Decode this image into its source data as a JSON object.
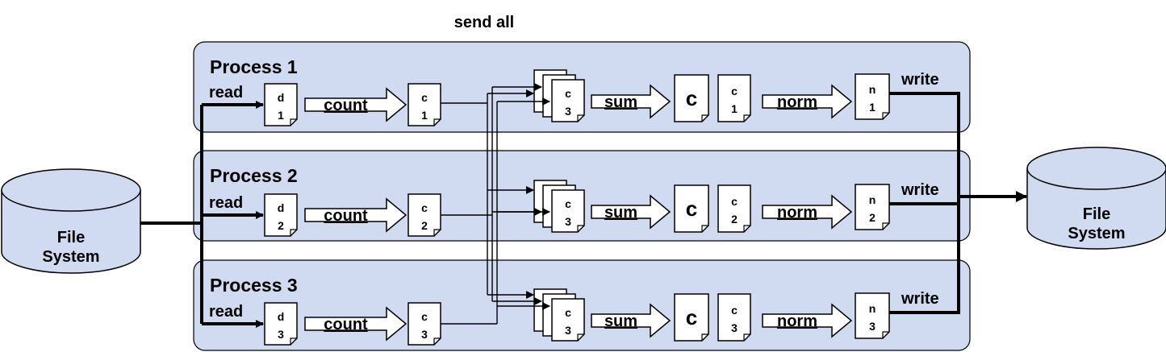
{
  "header": {
    "send_all": "send all"
  },
  "storage": {
    "source": {
      "line1": "File",
      "line2": "System"
    },
    "target": {
      "line1": "File",
      "line2": "System"
    }
  },
  "processes": [
    {
      "title": "Process 1",
      "read": "read",
      "write": "write",
      "input_doc": {
        "top": "d",
        "bottom": "1"
      },
      "count_label": "count",
      "count_doc": {
        "top": "c",
        "bottom": "1"
      },
      "stack_doc": {
        "top": "c",
        "bottom": "3"
      },
      "sum_label": "sum",
      "sum_doc": {
        "top": "c"
      },
      "local_doc": {
        "top": "c",
        "bottom": "1"
      },
      "norm_label": "norm",
      "norm_doc": {
        "top": "n",
        "bottom": "1"
      }
    },
    {
      "title": "Process 2",
      "read": "read",
      "write": "write",
      "input_doc": {
        "top": "d",
        "bottom": "2"
      },
      "count_label": "count",
      "count_doc": {
        "top": "c",
        "bottom": "2"
      },
      "stack_doc": {
        "top": "c",
        "bottom": "3"
      },
      "sum_label": "sum",
      "sum_doc": {
        "top": "c"
      },
      "local_doc": {
        "top": "c",
        "bottom": "2"
      },
      "norm_label": "norm",
      "norm_doc": {
        "top": "n",
        "bottom": "2"
      }
    },
    {
      "title": "Process 3",
      "read": "read",
      "write": "write",
      "input_doc": {
        "top": "d",
        "bottom": "3"
      },
      "count_label": "count",
      "count_doc": {
        "top": "c",
        "bottom": "3"
      },
      "stack_doc": {
        "top": "c",
        "bottom": "3"
      },
      "sum_label": "sum",
      "sum_doc": {
        "top": "c"
      },
      "local_doc": {
        "top": "c",
        "bottom": "3"
      },
      "norm_label": "norm",
      "norm_doc": {
        "top": "n",
        "bottom": "3"
      }
    }
  ],
  "colors": {
    "panel_fill": "#d0daf1",
    "panel_stroke": "#000000",
    "db_fill": "#d0daf1"
  }
}
